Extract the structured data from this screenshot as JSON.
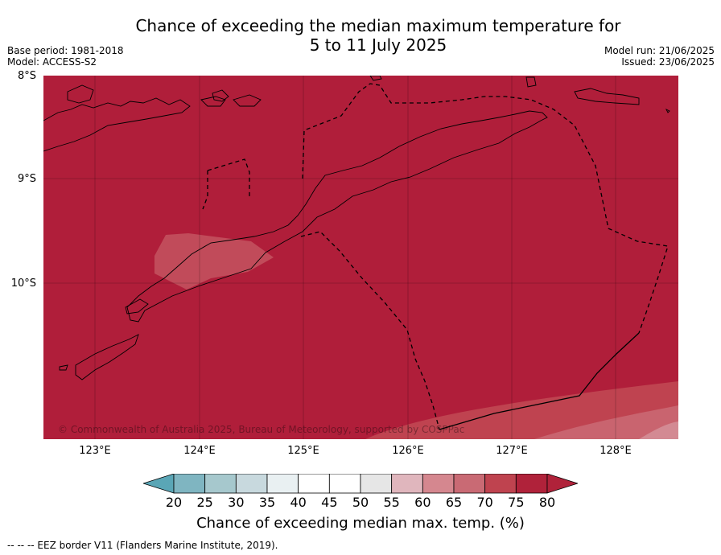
{
  "title_line1": "Chance of exceeding the median maximum temperature for",
  "title_line2": "5 to 11 July 2025",
  "base_period": "Base period: 1981-2018",
  "model": "Model: ACCESS-S2",
  "model_run": "Model run: 21/06/2025",
  "issued": "Issued: 23/06/2025",
  "lat_labels": [
    "8°S",
    "9°S",
    "10°S"
  ],
  "lon_labels": [
    "123°E",
    "124°E",
    "125°E",
    "126°E",
    "127°E",
    "128°E"
  ],
  "copyright": "© Commonwealth of Australia 2025, Bureau of Meteorology, supported by COSPPac",
  "colorbar": {
    "ticks": [
      "20",
      "25",
      "30",
      "35",
      "40",
      "45",
      "50",
      "55",
      "60",
      "65",
      "70",
      "75",
      "80"
    ],
    "colors": [
      "#5aa6b6",
      "#7fb5c1",
      "#a6c8cd",
      "#c8d9de",
      "#e9f0f2",
      "#ffffff",
      "#ffffff",
      "#e6e6e6",
      "#e0b6bd",
      "#d5878f",
      "#c96a74",
      "#bf434f",
      "#b0223a"
    ],
    "label": "Chance of exceeding median max. temp. (%)"
  },
  "footer": "--  --  -- EEZ border V11 (Flanders Marine Institute, 2019).",
  "map": {
    "background_category": "> 80%",
    "colors": {
      "dominant": "#b01e3a",
      "class_75_80": "#bf4350",
      "class_70_75": "#c9646f",
      "class_65_70": "#d38a93"
    }
  }
}
